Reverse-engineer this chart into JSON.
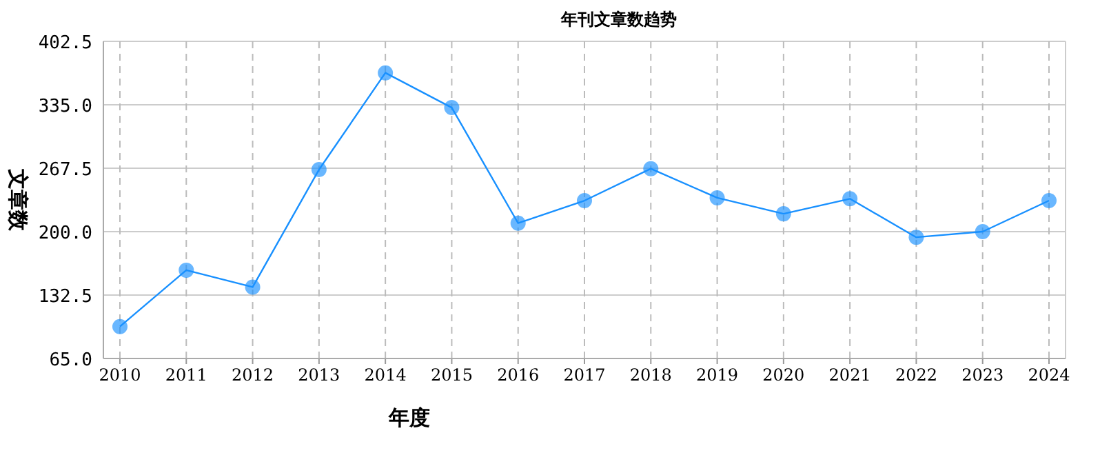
{
  "chart_data": {
    "type": "line",
    "title": "年刊文章数趋势",
    "xlabel": "年度",
    "ylabel": "文章数",
    "categories": [
      "2010",
      "2011",
      "2012",
      "2013",
      "2014",
      "2015",
      "2016",
      "2017",
      "2018",
      "2019",
      "2020",
      "2021",
      "2022",
      "2023",
      "2024"
    ],
    "series": [
      {
        "color": "#1890ff",
        "values": [
          99,
          159,
          141,
          266,
          369,
          332,
          209,
          233,
          267,
          236,
          219,
          235,
          194,
          200,
          233
        ]
      }
    ],
    "ylim": [
      65,
      402.5
    ],
    "yticks": [
      {
        "value": 65,
        "label": "65.0"
      },
      {
        "value": 132.5,
        "label": "132.5"
      },
      {
        "value": 200,
        "label": "200.0"
      },
      {
        "value": 267.5,
        "label": "267.5"
      },
      {
        "value": 335,
        "label": "335.0"
      },
      {
        "value": 402.5,
        "label": "402.5"
      }
    ],
    "grid": true,
    "marker": "circle",
    "line_style": "solid"
  }
}
